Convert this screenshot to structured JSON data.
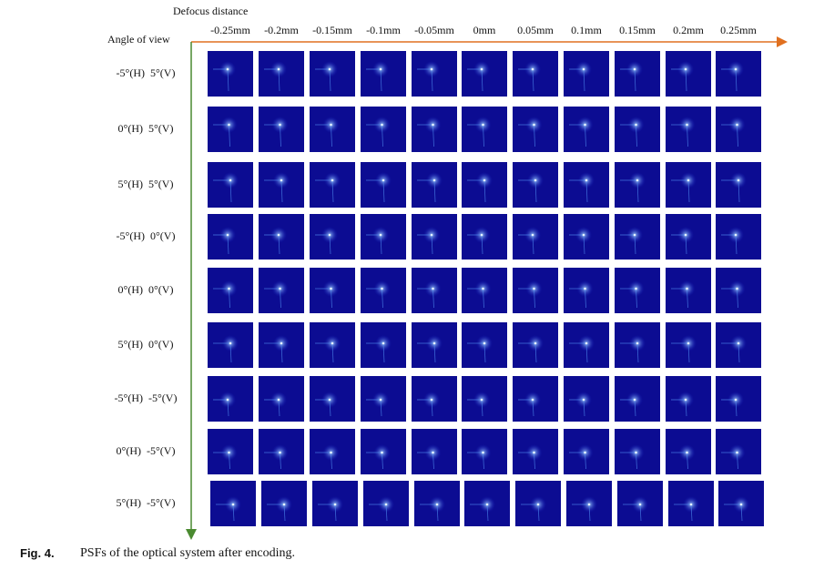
{
  "axes": {
    "x_label": "Defocus distance",
    "y_label": "Angle of view"
  },
  "columns": [
    "-0.25mm",
    "-0.2mm",
    "-0.15mm",
    "-0.1mm",
    "-0.05mm",
    "0mm",
    "0.05mm",
    "0.1mm",
    "0.15mm",
    "0.2mm",
    "0.25mm"
  ],
  "rows": [
    "-5°(H)  5°(V)",
    "0°(H)  5°(V)",
    "5°(H)  5°(V)",
    "-5°(H)  0°(V)",
    "0°(H)  0°(V)",
    "5°(H)  0°(V)",
    "-5°(H)  -5°(V)",
    "0°(H)  -5°(V)",
    "5°(H)  -5°(V)"
  ],
  "caption": {
    "label": "Fig. 4.",
    "text": "PSFs of the optical system after encoding."
  }
}
